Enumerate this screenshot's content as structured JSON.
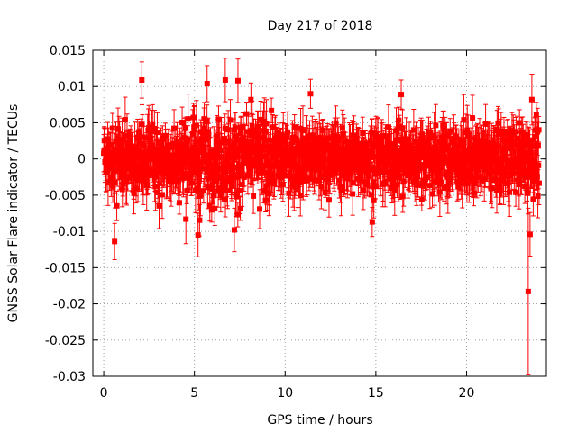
{
  "chart_data": {
    "type": "scatter",
    "title": "Day 217 of 2018",
    "xlabel": "GPS time / hours",
    "ylabel": "GNSS Solar Flare indicator / TECUs",
    "xlim": [
      -0.6,
      24.4
    ],
    "ylim": [
      -0.03,
      0.015
    ],
    "xticks": [
      0,
      5,
      10,
      15,
      20
    ],
    "xtick_labels": [
      "0",
      "5",
      "10",
      "15",
      "20"
    ],
    "yticks": [
      0.015,
      0.01,
      0.005,
      0,
      -0.005,
      -0.01,
      -0.015,
      -0.02,
      -0.025,
      -0.03
    ],
    "ytick_labels": [
      "0.015",
      "0.01",
      "0.005",
      "0",
      "-0.005",
      "-0.01",
      "-0.015",
      "-0.02",
      "-0.025",
      "-0.03"
    ],
    "grid": true,
    "series": [
      {
        "name": "solar flare indicator",
        "color": "#ff0000",
        "marker": "square",
        "error_bars": true,
        "x_range": [
          0,
          24
        ],
        "typical_spread": 0.004,
        "typical_error": 0.0025,
        "notable_points": [
          {
            "x": 0.6,
            "y": -0.0114,
            "err": 0.0025
          },
          {
            "x": 2.1,
            "y": 0.0109,
            "err": 0.0025
          },
          {
            "x": 5.2,
            "y": -0.0105,
            "err": 0.003
          },
          {
            "x": 5.7,
            "y": 0.0104,
            "err": 0.0025
          },
          {
            "x": 6.7,
            "y": 0.0109,
            "err": 0.003
          },
          {
            "x": 7.2,
            "y": -0.0098,
            "err": 0.003
          },
          {
            "x": 7.4,
            "y": 0.0108,
            "err": 0.003
          },
          {
            "x": 11.4,
            "y": 0.009,
            "err": 0.002
          },
          {
            "x": 14.8,
            "y": -0.0087,
            "err": 0.002
          },
          {
            "x": 16.4,
            "y": 0.0089,
            "err": 0.002
          },
          {
            "x": 23.4,
            "y": -0.0183,
            "err": 0.0115
          },
          {
            "x": 23.5,
            "y": -0.0104,
            "err": 0.003
          },
          {
            "x": 23.6,
            "y": 0.0082,
            "err": 0.0035
          }
        ]
      }
    ]
  }
}
